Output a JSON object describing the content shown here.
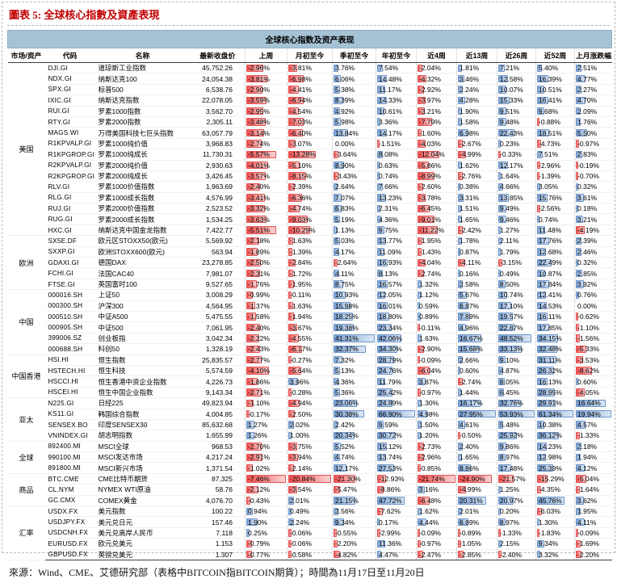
{
  "figure_title": "圖表 5: 全球核心指數及資產表現",
  "footer": "來源：Wind、CME、艾德研究部（表格中BITCOIN指BITCOIN期貨）；時間為11月17日至11月20日",
  "colors": {
    "title_red": "#c00000",
    "header_band": "#a6c3d5",
    "positive_bar": "#7ba2d4",
    "negative_bar": "#f4504f"
  },
  "table": {
    "title": "全球核心指数及资产表现",
    "columns": [
      "市场/资产",
      "代码",
      "名称",
      "最新收盘价",
      "上周",
      "月初至今",
      "季初至今",
      "年初至今",
      "近4周",
      "近13周",
      "近26周",
      "近52周",
      "上月涨跌幅"
    ],
    "groups": [
      {
        "market": "美国",
        "rows": [
          {
            "code": "DJI.GI",
            "name": "道琼斯工业指数",
            "close": "45,752.26",
            "pct": [
              -2.96,
              -3.81,
              3.76,
              7.54,
              -2.04,
              1.81,
              7.21,
              5.4,
              2.51
            ]
          },
          {
            "code": "NDX.GI",
            "name": "纳斯达克100",
            "close": "24,054.38",
            "pct": [
              -3.81,
              -6.98,
              6.06,
              14.48,
              -4.32,
              3.46,
              12.58,
              16.39,
              4.77
            ]
          },
          {
            "code": "SPX.GI",
            "name": "标普500",
            "close": "6,538.76",
            "pct": [
              -2.9,
              -4.41,
              5.38,
              11.17,
              -2.92,
              2.24,
              10.07,
              10.51,
              2.27
            ]
          },
          {
            "code": "IXIC.GI",
            "name": "纳斯达克指数",
            "close": "22,078.05",
            "pct": [
              -3.59,
              -6.94,
              8.39,
              14.33,
              -3.97,
              4.28,
              15.33,
              16.41,
              4.7
            ]
          },
          {
            "code": "RUI.GI",
            "name": "罗素1000指数",
            "close": "3,562.70",
            "pct": [
              -2.95,
              -4.54,
              4.92,
              10.61,
              -3.21,
              1.9,
              9.51,
              9.68,
              2.09
            ]
          },
          {
            "code": "RTY.GI",
            "name": "罗素2000指数",
            "close": "2,305.11",
            "pct": [
              -3.48,
              -7.03,
              5.98,
              3.36,
              -7.79,
              1.58,
              9.48,
              -0.88,
              1.76
            ]
          },
          {
            "code": "MAGS.WI",
            "name": "万得美国科技七巨头指数",
            "close": "63,057.79",
            "pct": [
              -3.14,
              -6.4,
              13.84,
              14.17,
              -1.6,
              6.98,
              22.43,
              18.51,
              5.5
            ]
          },
          {
            "code": "R1KPVALP.GI",
            "name": "罗素1000纯价值",
            "close": "3,968.83",
            "pct": [
              -2.74,
              -3.07,
              0.0,
              -1.51,
              -4.03,
              -2.67,
              0.23,
              -4.73,
              -0.97
            ]
          },
          {
            "code": "R1KPGROP.GI",
            "name": "罗素1000纯成长",
            "close": "11,730.31",
            "pct": [
              -5.57,
              -13.28,
              -3.64,
              8.08,
              -12.04,
              -4.99,
              -0.33,
              7.51,
              2.83
            ]
          },
          {
            "code": "R2KPVALP.GI",
            "name": "罗素2000纯价值",
            "close": "2,930.63",
            "pct": [
              -4.01,
              -5.1,
              8.9,
              0.63,
              -5.86,
              1.62,
              12.17,
              -2.96,
              -0.19
            ]
          },
          {
            "code": "R2KPGROP.GI",
            "name": "罗素2000纯成长",
            "close": "3,426.45",
            "pct": [
              -3.57,
              -8.15,
              -3.43,
              0.74,
              -8.99,
              -2.76,
              1.64,
              -1.39,
              -0.7
            ]
          },
          {
            "code": "RLV.GI",
            "name": "罗素1000价值指数",
            "close": "1,963.69",
            "pct": [
              -2.4,
              -2.39,
              2.64,
              7.66,
              -2.6,
              0.38,
              4.66,
              3.05,
              0.32
            ]
          },
          {
            "code": "RLG.GI",
            "name": "罗素1000成长指数",
            "close": "4,576.99",
            "pct": [
              -3.41,
              -6.36,
              7.07,
              13.23,
              -3.78,
              3.31,
              13.85,
              15.76,
              3.61
            ]
          },
          {
            "code": "RUJ.GI",
            "name": "罗素2000价值指数",
            "close": "2,523.52",
            "pct": [
              -3.32,
              -4.74,
              6.83,
              2.31,
              -6.45,
              1.51,
              9.49,
              -2.56,
              0.18
            ]
          },
          {
            "code": "RUG.GI",
            "name": "罗素2000成长指数",
            "close": "1,534.25",
            "pct": [
              -3.63,
              -9.03,
              5.19,
              4.36,
              -9.01,
              1.65,
              9.46,
              0.74,
              3.21
            ]
          },
          {
            "code": "HXC.GI",
            "name": "纳斯达克中国金龙指数",
            "close": "7,422.77",
            "pct": [
              -5.51,
              -10.29,
              1.13,
              9.75,
              -11.22,
              -2.42,
              1.27,
              11.48,
              -4.19
            ]
          }
        ]
      },
      {
        "market": "欧洲",
        "rows": [
          {
            "code": "SX5E.DF",
            "name": "欧元区STOXX50(欧元)",
            "close": "5,569.92",
            "pct": [
              -2.18,
              -1.63,
              5.03,
              13.77,
              -1.95,
              1.78,
              2.11,
              17.76,
              2.39
            ]
          },
          {
            "code": "SXXP.GI",
            "name": "欧洲STOXX600(欧元)",
            "close": "563.94",
            "pct": [
              -1.89,
              -1.39,
              4.17,
              11.09,
              -1.43,
              0.87,
              1.79,
              12.68,
              2.46
            ]
          },
          {
            "code": "GDAXI.GI",
            "name": "德国DAX",
            "close": "23,278.85",
            "pct": [
              -2.5,
              -2.84,
              -2.64,
              16.93,
              -4.04,
              -4.11,
              -3.15,
              22.49,
              0.32
            ]
          },
          {
            "code": "FCHI.GI",
            "name": "法国CAC40",
            "close": "7,981.07",
            "pct": [
              -2.31,
              -1.72,
              4.11,
              8.13,
              -2.74,
              0.16,
              0.49,
              10.87,
              2.85
            ]
          },
          {
            "code": "FTSE.GI",
            "name": "英国富时100",
            "close": "9,527.65",
            "pct": [
              -1.76,
              -1.95,
              8.75,
              16.57,
              1.32,
              2.58,
              8.5,
              17.84,
              3.92
            ]
          }
        ]
      },
      {
        "market": "中国",
        "rows": [
          {
            "code": "000016.SH",
            "name": "上证50",
            "close": "3,008.29",
            "pct": [
              -0.99,
              -0.11,
              10.93,
              12.05,
              1.12,
              5.67,
              10.74,
              12.41,
              0.76
            ]
          },
          {
            "code": "000300.SH",
            "name": "沪深300",
            "close": "4,564.95",
            "pct": [
              -1.37,
              -1.63,
              15.98,
              16.01,
              0.59,
              6.87,
              17.1,
              14.53,
              0.0
            ]
          },
          {
            "code": "000510.SH",
            "name": "中证A500",
            "close": "5,475.55",
            "pct": [
              -1.58,
              -1.94,
              18.25,
              18.8,
              0.89,
              7.89,
              19.57,
              16.11,
              -0.62
            ]
          },
          {
            "code": "000905.SH",
            "name": "中证500",
            "close": "7,061.95",
            "pct": [
              -2.4,
              -3.67,
              19.38,
              23.34,
              -0.11,
              4.96,
              22.87,
              17.85,
              -1.1
            ]
          },
          {
            "code": "399006.SZ",
            "name": "创业板指",
            "close": "3,042.34",
            "pct": [
              -2.22,
              -4.55,
              41.31,
              42.06,
              1.63,
              16.67,
              48.52,
              34.15,
              -1.56
            ]
          },
          {
            "code": "000688.SH",
            "name": "科创50",
            "close": "1,328.19",
            "pct": [
              -2.43,
              -6.17,
              32.37,
              34.3,
              -2.9,
              15.68,
              33.13,
              32.48,
              -5.33
            ]
          }
        ]
      },
      {
        "market": "中国香港",
        "rows": [
          {
            "code": "HSI.HI",
            "name": "恒生指数",
            "close": "25,835.57",
            "pct": [
              -2.77,
              -0.27,
              7.32,
              28.79,
              -0.09,
              2.66,
              9.1,
              31.11,
              -3.53
            ]
          },
          {
            "code": "HSTECH.HI",
            "name": "恒生科技",
            "close": "5,574.59",
            "pct": [
              -4.1,
              -5.64,
              5.13,
              24.76,
              -6.04,
              0.6,
              4.87,
              26.32,
              -8.62
            ]
          },
          {
            "code": "HSCCI.HI",
            "name": "恒生香港中资企业指数",
            "close": "4,226.73",
            "pct": [
              -1.86,
              3.96,
              4.36,
              11.79,
              3.87,
              -2.74,
              8.05,
              16.13,
              0.6
            ]
          },
          {
            "code": "HSCEI.HI",
            "name": "恒生中国企业指数",
            "close": "9,143.34",
            "pct": [
              -2.71,
              -0.28,
              5.36,
              25.42,
              -0.97,
              1.44,
              6.45,
              28.95,
              -4.05
            ]
          }
        ]
      },
      {
        "market": "亚太",
        "rows": [
          {
            "code": "N225.GI",
            "name": "日经225",
            "close": "49,823.94",
            "pct": [
              -1.1,
              -4.94,
              23.06,
              24.89,
              1.3,
              16.17,
              32.76,
              29.91,
              16.64
            ]
          },
          {
            "code": "KS11.GI",
            "name": "韩国综合指数",
            "close": "4,004.85",
            "pct": [
              -0.17,
              -2.5,
              30.38,
              66.9,
              4.98,
              27.95,
              53.93,
              61.34,
              19.94
            ]
          },
          {
            "code": "SENSEX.BO",
            "name": "印度SENSEX30",
            "close": "85,632.68",
            "pct": [
              1.27,
              2.02,
              2.42,
              9.59,
              1.5,
              4.61,
              5.48,
              10.38,
              4.57
            ]
          },
          {
            "code": "VNINDEX.GI",
            "name": "胡志明指数",
            "close": "1,655.99",
            "pct": [
              1.26,
              1.0,
              20.34,
              30.72,
              1.2,
              -0.5,
              25.92,
              36.12,
              -1.33
            ]
          }
        ]
      },
      {
        "market": "全球",
        "rows": [
          {
            "code": "892400.MI",
            "name": "MSCI全球",
            "close": "968.53",
            "pct": [
              -2.7,
              -3.75,
              5.52,
              15.12,
              -2.73,
              2.4,
              9.86,
              14.23,
              2.18
            ]
          },
          {
            "code": "990100.MI",
            "name": "MSCI发达市场",
            "close": "4,217.24",
            "pct": [
              -2.91,
              -3.94,
              4.74,
              13.74,
              -2.96,
              1.65,
              8.97,
              12.98,
              1.94
            ]
          },
          {
            "code": "891800.MI",
            "name": "MSCI新兴市场",
            "close": "1,371.54",
            "pct": [
              -1.02,
              -2.14,
              12.17,
              27.53,
              -0.85,
              8.86,
              17.48,
              25.39,
              4.12
            ]
          }
        ]
      },
      {
        "market": "商品",
        "rows": [
          {
            "code": "BTC.CME",
            "name": "CME比特币期货",
            "close": "87,325",
            "pct": [
              -7.46,
              -20.84,
              -21.3,
              -12.93,
              -21.74,
              -24.9,
              -21.57,
              -15.29,
              -5.04
            ]
          },
          {
            "code": "CL.NYM",
            "name": "NYMEX WTI原油",
            "close": "58.76",
            "pct": [
              -2.12,
              -3.54,
              -5.47,
              -8.86,
              3.16,
              -4.99,
              1.25,
              -4.35,
              -1.64
            ]
          },
          {
            "code": "GC.CMX",
            "name": "COMEX黄金",
            "close": "4,076.70",
            "pct": [
              -0.43,
              2.01,
              21.15,
              47.72,
              -6.48,
              20.31,
              20.97,
              45.76,
              3.62
            ]
          }
        ]
      },
      {
        "market": "汇率",
        "rows": [
          {
            "code": "USDX.FX",
            "name": "美元指数",
            "close": "100.22",
            "pct": [
              0.94,
              0.49,
              3.56,
              -7.62,
              1.62,
              2.01,
              0.2,
              -6.03,
              1.95
            ]
          },
          {
            "code": "USDJPY.FX",
            "name": "美元兑日元",
            "close": "157.46",
            "pct": [
              1.9,
              2.24,
              9.34,
              0.17,
              4.44,
              6.89,
              8.97,
              1.3,
              4.11
            ]
          },
          {
            "code": "USDCNH.FX",
            "name": "美元兑离岸人民币",
            "close": "7.118",
            "pct": [
              0.25,
              -0.06,
              -0.55,
              -2.99,
              -0.09,
              -0.89,
              -1.33,
              -1.83,
              -0.09
            ]
          },
          {
            "code": "EURUSD.FX",
            "name": "欧元兑美元",
            "close": "1.153",
            "pct": [
              -0.79,
              -0.06,
              -2.2,
              11.36,
              -0.97,
              -1.05,
              2.15,
              9.34,
              -1.69
            ]
          },
          {
            "code": "GBPUSD.FX",
            "name": "英镑兑美元",
            "close": "1.307",
            "pct": [
              -0.77,
              -0.58,
              -4.82,
              4.47,
              -2.47,
              -2.85,
              -2.4,
              3.32,
              -2.2
            ]
          }
        ]
      }
    ]
  }
}
